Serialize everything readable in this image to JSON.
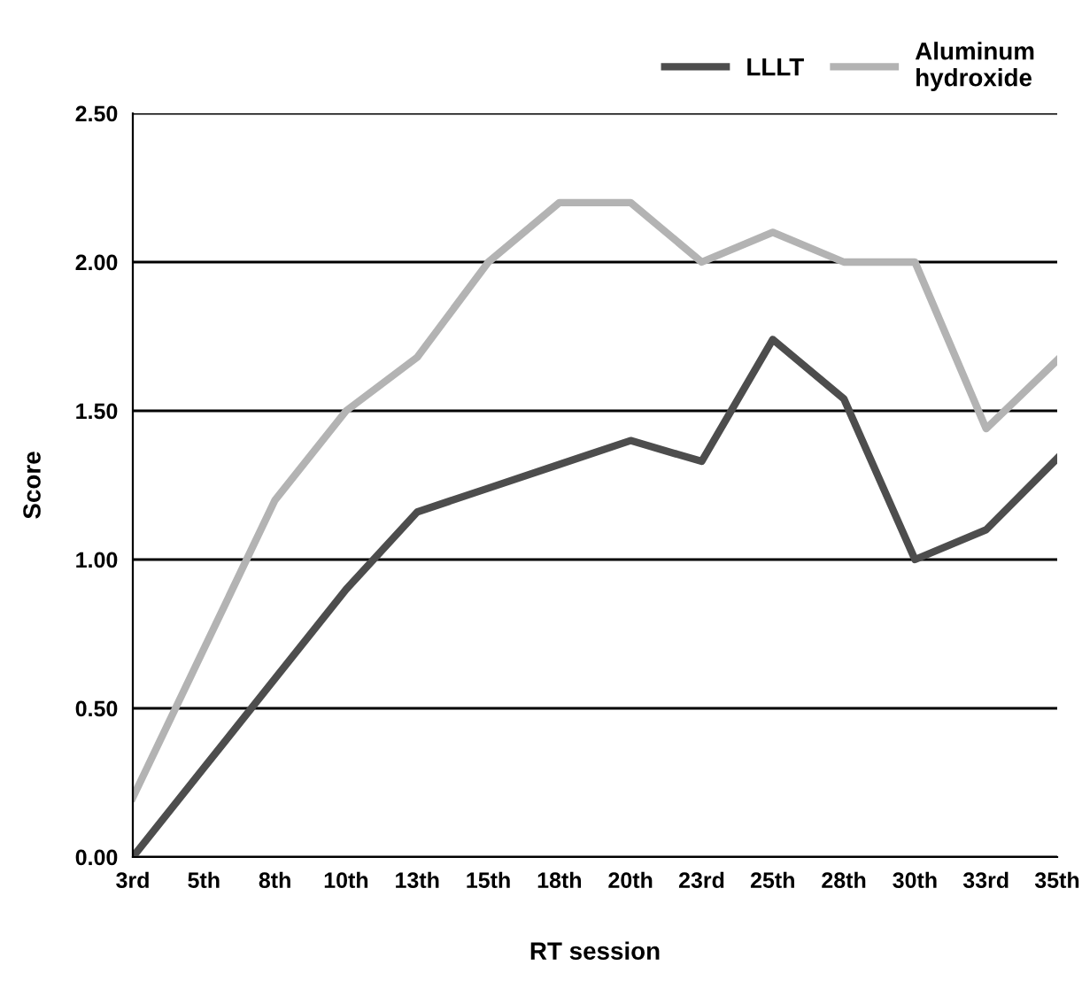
{
  "chart_data": {
    "type": "line",
    "xlabel": "RT session",
    "ylabel": "Score",
    "categories": [
      "3rd",
      "5th",
      "8th",
      "10th",
      "13th",
      "15th",
      "18th",
      "20th",
      "23rd",
      "25th",
      "28th",
      "30th",
      "33rd",
      "35th"
    ],
    "series": [
      {
        "name": "LLLT",
        "color": "#4d4d4d",
        "values": [
          0,
          0.3,
          0.6,
          0.9,
          1.16,
          1.24,
          1.32,
          1.4,
          1.33,
          1.74,
          1.54,
          1.0,
          1.1,
          1.34
        ]
      },
      {
        "name": "Aluminum\nhydroxide",
        "color": "#b3b3b3",
        "values": [
          0.2,
          0.7,
          1.2,
          1.5,
          1.68,
          2.0,
          2.2,
          2.2,
          2.0,
          2.1,
          2.0,
          2.0,
          1.44,
          1.67
        ]
      }
    ],
    "ylim": [
      0,
      2.5
    ],
    "yticks": [
      {
        "value": 0,
        "label": "0.00"
      },
      {
        "value": 0.5,
        "label": "0.50"
      },
      {
        "value": 1,
        "label": "1.00"
      },
      {
        "value": 1.5,
        "label": "1.50"
      },
      {
        "value": 2,
        "label": "2.00"
      },
      {
        "value": 2.5,
        "label": "2.50"
      }
    ],
    "grid": "y",
    "legend": "top right",
    "marker": "none",
    "line_style": "solid"
  }
}
